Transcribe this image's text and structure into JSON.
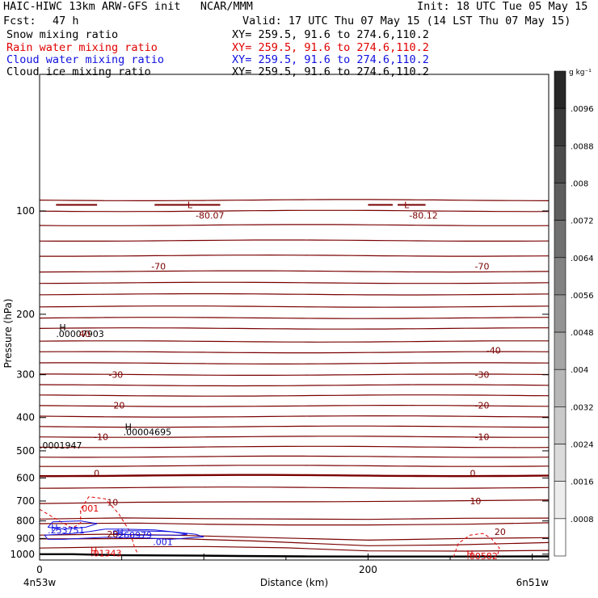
{
  "header": {
    "title_left": "HAIC-HIWC 13km ARW-GFS init   NCAR/MMM",
    "init": "Init: 18 UTC Tue 05 May 15",
    "fcst_label": "Fcst:",
    "fcst_value": "47 h",
    "valid": "Valid: 17 UTC Thu 07 May 15 (14 LST Thu 07 May 15)",
    "fields": [
      {
        "name": "Snow mixing ratio",
        "xy": "XY= 259.5, 91.6 to 274.6,110.2",
        "color": "#000000"
      },
      {
        "name": "Rain water mixing ratio",
        "xy": "XY= 259.5, 91.6 to 274.6,110.2",
        "color": "#e00000"
      },
      {
        "name": "Cloud water mixing ratio",
        "xy": "XY= 259.5, 91.6 to 274.6,110.2",
        "color": "#1010e0"
      },
      {
        "name": "Cloud ice mixing ratio",
        "xy": "XY= 259.5, 91.6 to 274.6,110.2",
        "color": "#000000"
      }
    ]
  },
  "chart_data": {
    "type": "contour",
    "xlabel": "Distance (km)",
    "ylabel": "Pressure (hPa)",
    "xlim": [
      0,
      310
    ],
    "ylim": [
      1040,
      40
    ],
    "y_scale": "log",
    "x_ticks": [
      0,
      200
    ],
    "y_ticks": [
      100,
      200,
      300,
      400,
      500,
      600,
      700,
      800,
      900,
      1000
    ],
    "x_left_label": "4n53w",
    "x_right_label": "6n51w",
    "colorbar": {
      "unit": "g kg⁻¹",
      "labels": [
        ".0096",
        ".0088",
        ".008",
        ".0072",
        ".0064",
        ".0056",
        ".0048",
        ".004",
        ".0032",
        ".0024",
        ".0016",
        ".0008"
      ]
    },
    "temperature_contour_labels": [
      {
        "text": "-80.07",
        "x": 95,
        "p": 103
      },
      {
        "text": "-80.12",
        "x": 225,
        "p": 103
      },
      {
        "text": "-70",
        "x": 68,
        "p": 145
      },
      {
        "text": "-70",
        "x": 265,
        "p": 145
      },
      {
        "text": "-40",
        "x": 272,
        "p": 255
      },
      {
        "text": "-30",
        "x": 42,
        "p": 300
      },
      {
        "text": "-30",
        "x": 265,
        "p": 300
      },
      {
        "text": "-20",
        "x": 43,
        "p": 368
      },
      {
        "text": "-20",
        "x": 265,
        "p": 368
      },
      {
        "text": "-10",
        "x": 33,
        "p": 455
      },
      {
        "text": "-10",
        "x": 265,
        "p": 455
      },
      {
        "text": "0",
        "x": 33,
        "p": 580
      },
      {
        "text": "0",
        "x": 262,
        "p": 580
      },
      {
        "text": "10",
        "x": 41,
        "p": 706
      },
      {
        "text": "10",
        "x": 262,
        "p": 700
      },
      {
        "text": "20",
        "x": 41,
        "p": 875
      },
      {
        "text": "20",
        "x": 277,
        "p": 860
      }
    ],
    "extrema": [
      {
        "text": "L",
        "x": 90,
        "p": 96,
        "color": "#8b0000"
      },
      {
        "text": "L",
        "x": 222,
        "p": 96,
        "color": "#8b0000"
      },
      {
        "text": "H",
        "x": 12,
        "p": 218,
        "color": "#000000"
      },
      {
        "text": ".00007903",
        "x": 10,
        "p": 228,
        "color": "#000000"
      },
      {
        "text": "40",
        "x": 24,
        "p": 228,
        "color": "#8b0000"
      },
      {
        "text": "H",
        "x": 52,
        "p": 425,
        "color": "#000000"
      },
      {
        "text": ".00004695",
        "x": 51,
        "p": 440,
        "color": "#000000"
      },
      {
        "text": ".0001947",
        "x": 0,
        "p": 482,
        "color": "#000000"
      },
      {
        "text": ".001",
        "x": 24,
        "p": 735,
        "color": "#e00000"
      },
      {
        "text": "H",
        "x": 7,
        "p": 837,
        "color": "#1010e0"
      },
      {
        "text": ".253751",
        "x": 5,
        "p": 852,
        "color": "#1010e0"
      },
      {
        "text": "H",
        "x": 47,
        "p": 865,
        "color": "#1010e0"
      },
      {
        "text": ".260979",
        "x": 46,
        "p": 880,
        "color": "#1010e0"
      },
      {
        "text": ".001",
        "x": 69,
        "p": 920,
        "color": "#1010e0"
      },
      {
        "text": "H",
        "x": 31,
        "p": 978,
        "color": "#e00000"
      },
      {
        "text": ".01343",
        "x": 31,
        "p": 993,
        "color": "#e00000"
      },
      {
        "text": "H",
        "x": 260,
        "p": 995,
        "color": "#e00000"
      },
      {
        "text": ".00582",
        "x": 260,
        "p": 1011,
        "color": "#e00000"
      }
    ]
  }
}
